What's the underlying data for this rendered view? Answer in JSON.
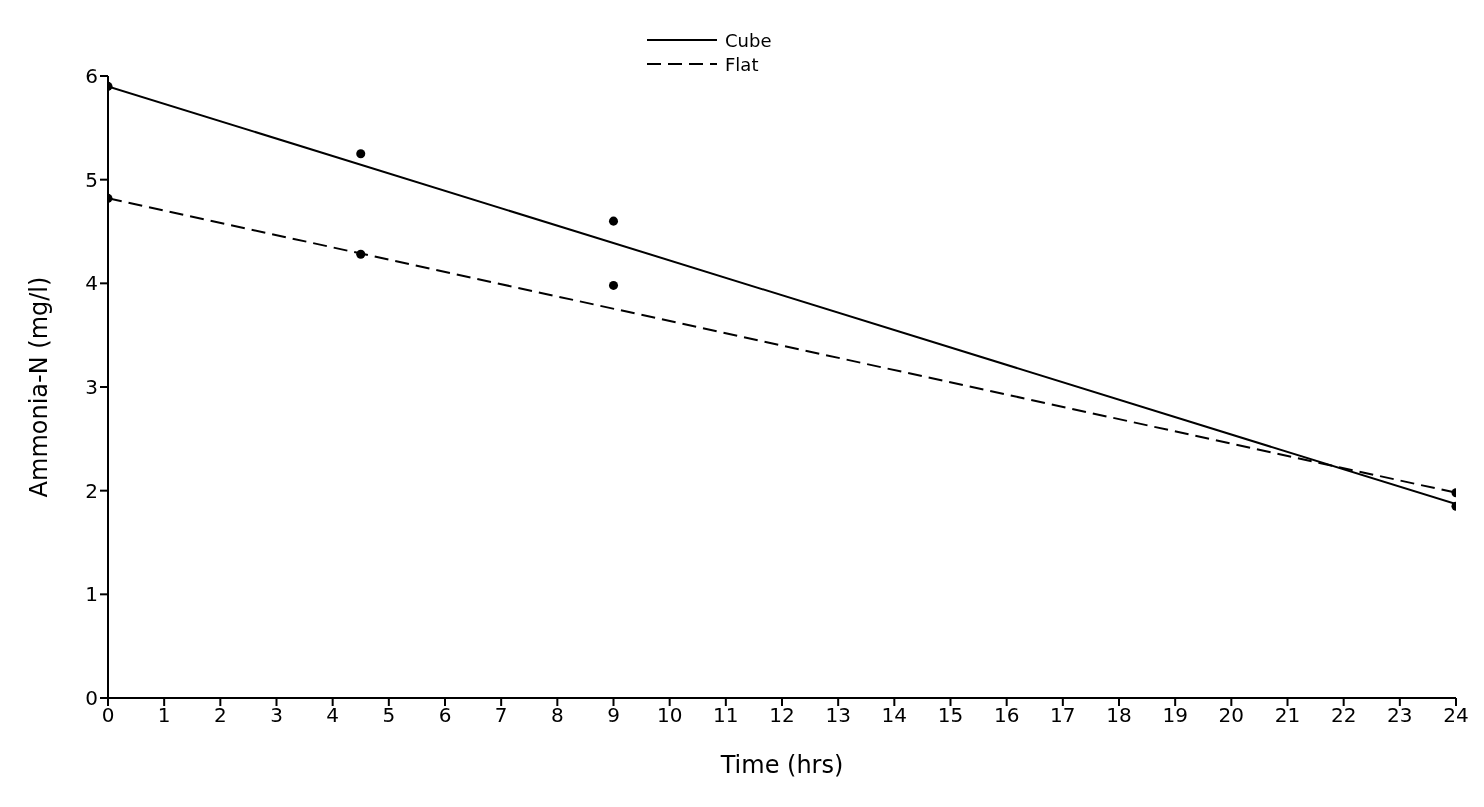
{
  "chart_data": {
    "type": "line",
    "xlabel": "Time (hrs)",
    "ylabel": "Ammonia-N (mg/l)",
    "xlim": [
      0,
      24
    ],
    "xticks": [
      0,
      1,
      2,
      3,
      4,
      5,
      6,
      7,
      8,
      9,
      10,
      11,
      12,
      13,
      14,
      15,
      16,
      17,
      18,
      19,
      20,
      21,
      22,
      23,
      24
    ],
    "ylim": [
      0,
      6
    ],
    "yticks": [
      0,
      1,
      2,
      3,
      4,
      5,
      6
    ],
    "grid": false,
    "legend": "top",
    "series": [
      {
        "name": "Cube",
        "color": "#000000",
        "line_style": "solid",
        "marker": "none",
        "x": [
          0,
          24
        ],
        "values": [
          5.9,
          1.87
        ]
      },
      {
        "name": "Flat",
        "color": "#000000",
        "line_style": "dashed",
        "marker": "none",
        "x": [
          0,
          24
        ],
        "values": [
          4.82,
          1.98
        ]
      },
      {
        "type": "scatter",
        "color": "#000000",
        "marker": "circle",
        "x": [
          0,
          4.5,
          9,
          24
        ],
        "values": [
          5.9,
          5.25,
          4.6,
          1.85
        ]
      },
      {
        "type": "scatter",
        "color": "#000000",
        "marker": "circle",
        "x": [
          0,
          4.5,
          9,
          24
        ],
        "values": [
          4.82,
          4.28,
          3.98,
          1.98
        ]
      }
    ]
  }
}
